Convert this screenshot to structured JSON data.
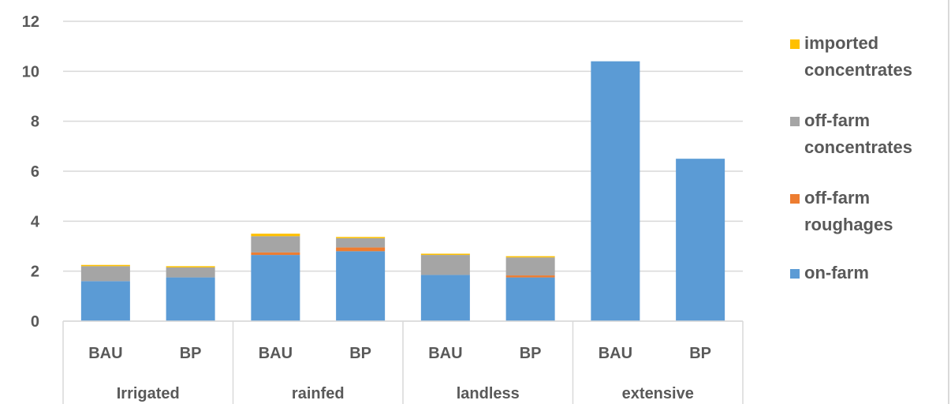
{
  "chart_data": {
    "type": "bar",
    "stacked": true,
    "title": "",
    "xlabel": "",
    "ylabel": "",
    "ylim": [
      0,
      12
    ],
    "yticks": [
      0,
      2,
      4,
      6,
      8,
      10,
      12
    ],
    "grid": true,
    "legend_position": "right",
    "groups": [
      "Irrigated",
      "rainfed",
      "landless",
      "extensive"
    ],
    "categories": [
      "BAU",
      "BP",
      "BAU",
      "BP",
      "BAU",
      "BP",
      "BAU",
      "BP"
    ],
    "series": [
      {
        "name": "on-farm",
        "color": "#5b9bd5",
        "values": [
          1.6,
          1.75,
          2.65,
          2.8,
          1.85,
          1.75,
          10.4,
          6.5
        ]
      },
      {
        "name": "off-farm roughages",
        "color": "#ed7d31",
        "values": [
          0.0,
          0.0,
          0.1,
          0.15,
          0.0,
          0.08,
          0.0,
          0.0
        ]
      },
      {
        "name": "off-farm concentrates",
        "color": "#a5a5a5",
        "values": [
          0.6,
          0.4,
          0.65,
          0.37,
          0.8,
          0.72,
          0.0,
          0.0
        ]
      },
      {
        "name": "imported concentrates",
        "color": "#ffc000",
        "values": [
          0.05,
          0.05,
          0.1,
          0.05,
          0.05,
          0.05,
          0.0,
          0.0
        ]
      }
    ],
    "legend_order": [
      {
        "line1": "imported",
        "line2": "concentrates",
        "color": "#ffc000"
      },
      {
        "line1": "off-farm",
        "line2": "concentrates",
        "color": "#a5a5a5"
      },
      {
        "line1": "off-farm",
        "line2": "roughages",
        "color": "#ed7d31"
      },
      {
        "line1": "on-farm",
        "line2": "",
        "color": "#5b9bd5"
      }
    ]
  }
}
